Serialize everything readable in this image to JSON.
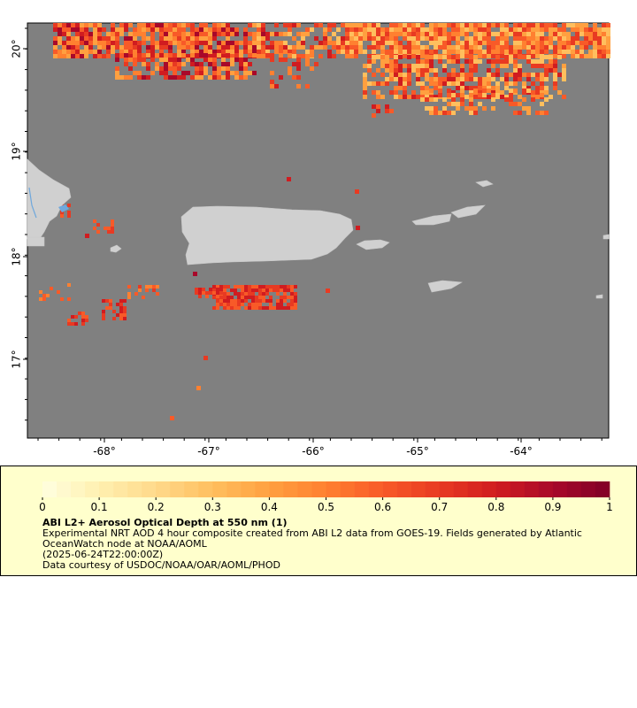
{
  "map": {
    "lon_ticks": [
      "-68°",
      "-67°",
      "-66°",
      "-65°",
      "-64°"
    ],
    "lat_ticks": [
      "20°",
      "19°",
      "18°",
      "17°"
    ],
    "ocean_color": "#808080",
    "land_color": "#d0d0d0",
    "lake_color": "#6fa8dc"
  },
  "legend": {
    "ticks": [
      "0",
      "0.1",
      "0.2",
      "0.3",
      "0.4",
      "0.5",
      "0.6",
      "0.7",
      "0.8",
      "0.9",
      "1"
    ],
    "colors": [
      "#ffffe0",
      "#fff0b0",
      "#ffd98a",
      "#ffbf5e",
      "#ffa040",
      "#ff8030",
      "#f85a28",
      "#e83a22",
      "#d01c20",
      "#a8082a",
      "#800026"
    ],
    "title": "ABI L2+ Aerosol Optical Depth at 550 nm (1)",
    "line1": "Experimental NRT AOD 4 hour composite created from ABI L2 data from GOES-19. Fields generated by Atlantic",
    "line2": "OceanWatch node at NOAA/AOML",
    "line3": "(2025-06-24T22:00:00Z)",
    "line4": "Data courtesy of USDOC/NOAA/OAR/AOML/PHOD"
  }
}
